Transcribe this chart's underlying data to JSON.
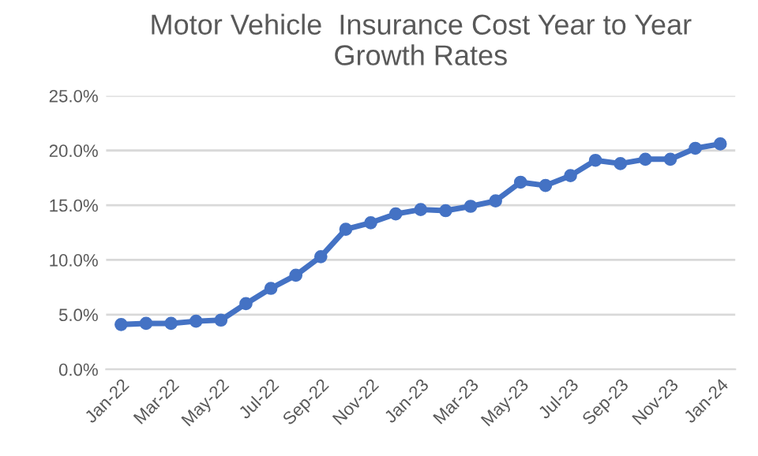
{
  "chart_data": {
    "type": "line",
    "title": "Motor Vehicle  Insurance Cost Year to Year\nGrowth Rates",
    "categories": [
      "Jan-22",
      null,
      "Mar-22",
      null,
      "May-22",
      null,
      "Jul-22",
      null,
      "Sep-22",
      null,
      "Nov-22",
      null,
      "Jan-23",
      null,
      "Mar-23",
      null,
      "May-23",
      null,
      "Jul-23",
      null,
      "Sep-23",
      null,
      "Nov-23",
      null,
      "Jan-24"
    ],
    "series": [
      {
        "color": "#4472c4",
        "values": [
          4.1,
          4.2,
          4.2,
          4.4,
          4.5,
          6.0,
          7.4,
          8.6,
          10.3,
          12.8,
          13.4,
          14.2,
          14.6,
          14.5,
          14.9,
          15.4,
          17.1,
          16.8,
          17.7,
          19.1,
          18.8,
          19.2,
          19.2,
          20.2,
          20.6
        ]
      }
    ],
    "ylim": [
      0,
      25
    ],
    "yticks": [
      {
        "value": 0,
        "label": "0.0%"
      },
      {
        "value": 5,
        "label": "5.0%"
      },
      {
        "value": 10,
        "label": "10.0%"
      },
      {
        "value": 15,
        "label": "15.0%"
      },
      {
        "value": 20,
        "label": "20.0%"
      },
      {
        "value": 25,
        "label": "25.0%"
      }
    ],
    "grid": "y",
    "marker": "circle",
    "line_style": "solid"
  }
}
